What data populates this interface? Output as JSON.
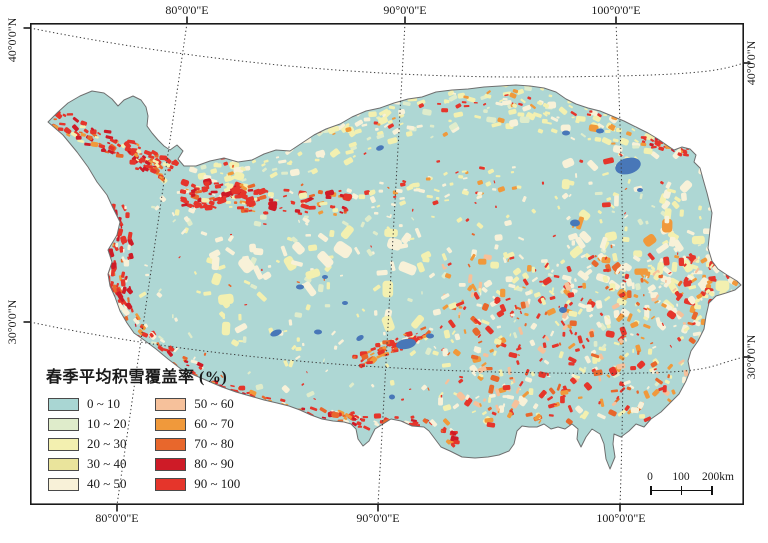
{
  "figure": {
    "type": "map",
    "region": "Tibetan Plateau snow cover classification map"
  },
  "axis": {
    "top": [
      "80°0'0\"E",
      "90°0'0\"E",
      "100°0'0\"E"
    ],
    "bottom": [
      "80°0'0\"E",
      "90°0'0\"E",
      "100°0'0\"E"
    ],
    "left": [
      "40°0'0\"N",
      "30°0'0\"N"
    ],
    "right": [
      "40°0'0\"N",
      "30°0'0\"N"
    ]
  },
  "legend": {
    "title": "春季平均积雪覆盖率 (%)",
    "items": [
      {
        "label": "0 ~ 10",
        "color": "#a9d6d3"
      },
      {
        "label": "10 ~ 20",
        "color": "#dfeccb"
      },
      {
        "label": "20 ~ 30",
        "color": "#f3f0b0"
      },
      {
        "label": "30 ~ 40",
        "color": "#eae49c"
      },
      {
        "label": "40 ~ 50",
        "color": "#f8f1d8"
      },
      {
        "label": "50 ~ 60",
        "color": "#f6c19b"
      },
      {
        "label": "60 ~ 70",
        "color": "#f0993b"
      },
      {
        "label": "70 ~ 80",
        "color": "#e8672c"
      },
      {
        "label": "80 ~ 90",
        "color": "#ce1b27"
      },
      {
        "label": "90 ~ 100",
        "color": "#e5352b"
      }
    ]
  },
  "scalebar": {
    "labels": [
      "0",
      "100",
      "200"
    ],
    "unit": "km"
  },
  "colors": {
    "map_base": "#aed7d4",
    "lake": "#4877b8",
    "boundary": "#6f6f6f",
    "frame": "#1a1a1a",
    "graticule": "#3a3a3a"
  }
}
